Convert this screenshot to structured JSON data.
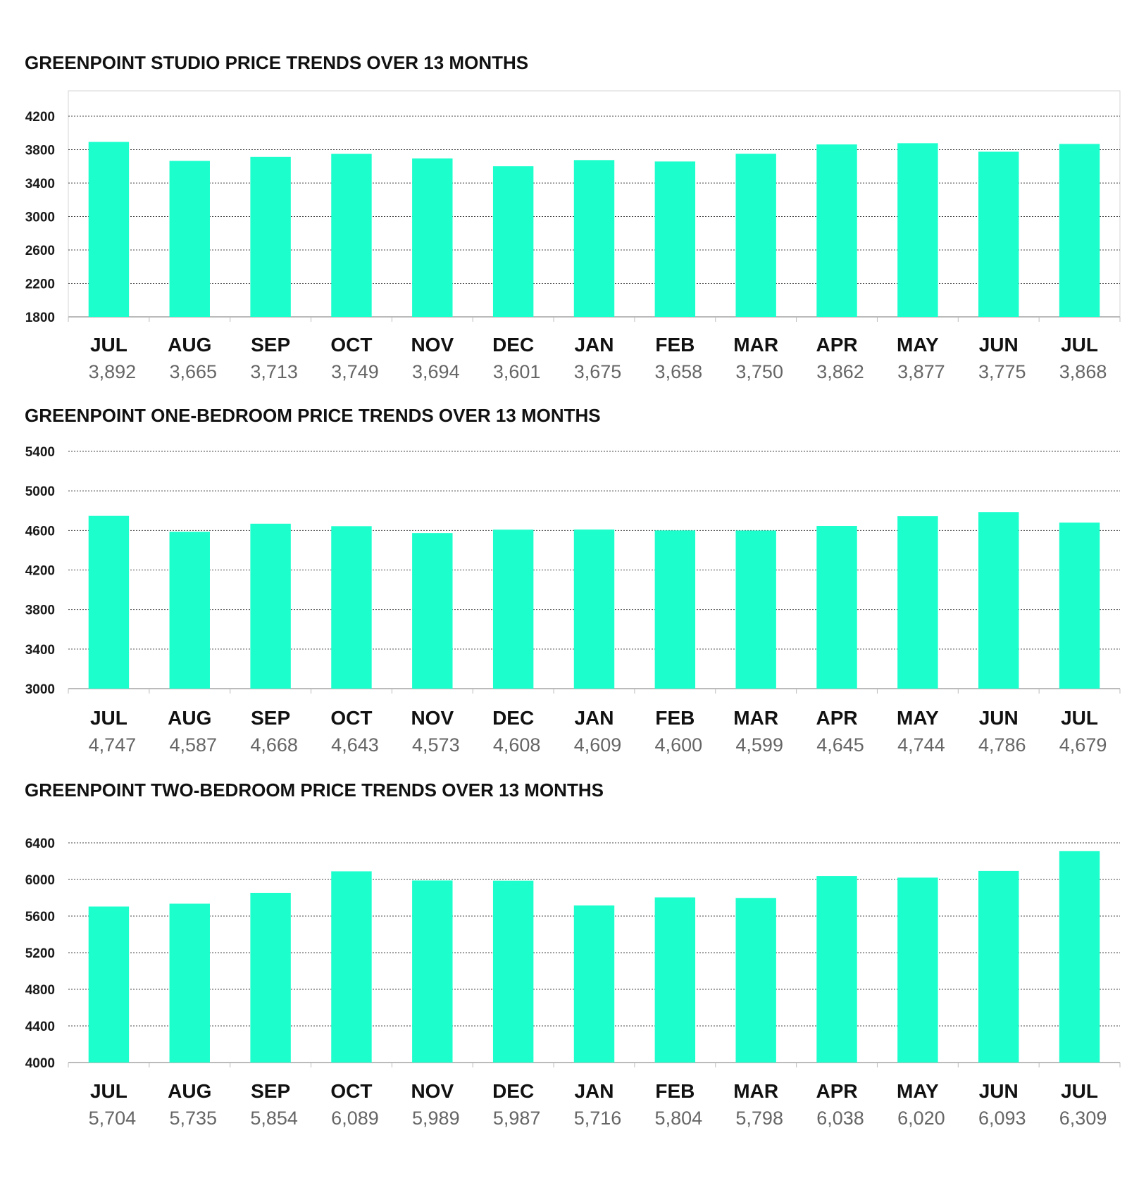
{
  "colors": {
    "bar": "#1cffcd",
    "grid": "#444444",
    "axis": "#bbbbbb",
    "value_text": "#666666"
  },
  "chart_data": [
    {
      "type": "bar",
      "title": "GREENPOINT STUDIO PRICE TRENDS OVER 13 MONTHS",
      "categories": [
        "JUL",
        "AUG",
        "SEP",
        "OCT",
        "NOV",
        "DEC",
        "JAN",
        "FEB",
        "MAR",
        "APR",
        "MAY",
        "JUN",
        "JUL"
      ],
      "values": [
        3892,
        3665,
        3713,
        3749,
        3694,
        3601,
        3675,
        3658,
        3750,
        3862,
        3877,
        3775,
        3868
      ],
      "value_labels": [
        "3,892",
        "3,665",
        "3,713",
        "3,749",
        "3,694",
        "3,601",
        "3,675",
        "3,658",
        "3,750",
        "3,862",
        "3,877",
        "3,775",
        "3,868"
      ],
      "yticks": [
        "1800",
        "2200",
        "2600",
        "3000",
        "3400",
        "3800",
        "4200"
      ],
      "ylim": [
        1800,
        4500
      ],
      "grid": true,
      "xlabel": "",
      "ylabel": ""
    },
    {
      "type": "bar",
      "title": "GREENPOINT ONE-BEDROOM PRICE TRENDS OVER 13 MONTHS",
      "categories": [
        "JUL",
        "AUG",
        "SEP",
        "OCT",
        "NOV",
        "DEC",
        "JAN",
        "FEB",
        "MAR",
        "APR",
        "MAY",
        "JUN",
        "JUL"
      ],
      "values": [
        4747,
        4587,
        4668,
        4643,
        4573,
        4608,
        4609,
        4600,
        4599,
        4645,
        4744,
        4786,
        4679
      ],
      "value_labels": [
        "4,747",
        "4,587",
        "4,668",
        "4,643",
        "4,573",
        "4,608",
        "4,609",
        "4,600",
        "4,599",
        "4,645",
        "4,744",
        "4,786",
        "4,679"
      ],
      "yticks": [
        "3000",
        "3400",
        "3800",
        "4200",
        "4600",
        "5000",
        "5400"
      ],
      "ylim": [
        3000,
        5400
      ],
      "grid": true,
      "xlabel": "",
      "ylabel": ""
    },
    {
      "type": "bar",
      "title": "GREENPOINT TWO-BEDROOM PRICE TRENDS OVER 13 MONTHS",
      "categories": [
        "JUL",
        "AUG",
        "SEP",
        "OCT",
        "NOV",
        "DEC",
        "JAN",
        "FEB",
        "MAR",
        "APR",
        "MAY",
        "JUN",
        "JUL"
      ],
      "values": [
        5704,
        5735,
        5854,
        6089,
        5989,
        5987,
        5716,
        5804,
        5798,
        6038,
        6020,
        6093,
        6309
      ],
      "value_labels": [
        "5,704",
        "5,735",
        "5,854",
        "6,089",
        "5,989",
        "5,987",
        "5,716",
        "5,804",
        "5,798",
        "6,038",
        "6,020",
        "6,093",
        "6,309"
      ],
      "yticks": [
        "4000",
        "4400",
        "4800",
        "5200",
        "5600",
        "6000",
        "6400"
      ],
      "ylim": [
        4000,
        6400
      ],
      "grid": true,
      "xlabel": "",
      "ylabel": ""
    }
  ]
}
